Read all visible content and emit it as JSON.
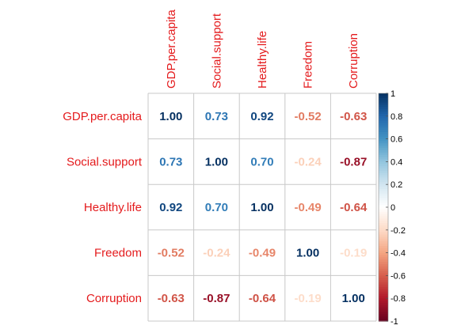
{
  "chart_data": {
    "type": "heatmap",
    "title": "",
    "variables": [
      "GDP.per.capita",
      "Social.support",
      "Healthy.life",
      "Freedom",
      "Corruption"
    ],
    "matrix": [
      [
        "1.00",
        "0.73",
        "0.92",
        "-0.52",
        "-0.63"
      ],
      [
        "0.73",
        "1.00",
        "0.70",
        "-0.24",
        "-0.87"
      ],
      [
        "0.92",
        "0.70",
        "1.00",
        "-0.49",
        "-0.64"
      ],
      [
        "-0.52",
        "-0.24",
        "-0.49",
        "1.00",
        "-0.19"
      ],
      [
        "-0.63",
        "-0.87",
        "-0.64",
        "-0.19",
        "1.00"
      ]
    ],
    "colorbar": {
      "range": [
        -1,
        1
      ],
      "ticks": [
        "1",
        "0.8",
        "0.6",
        "0.4",
        "0.2",
        "0",
        "-0.2",
        "-0.4",
        "-0.6",
        "-0.8",
        "-1"
      ]
    },
    "colors": {
      "label_color": "#e41a1c",
      "scale": [
        "#67001f",
        "#b2182b",
        "#d6604d",
        "#f4a582",
        "#fddbc7",
        "#ffffff",
        "#d1e5f0",
        "#92c5de",
        "#4393c3",
        "#2166ac",
        "#053061"
      ]
    },
    "grid": true,
    "legend": "right"
  }
}
